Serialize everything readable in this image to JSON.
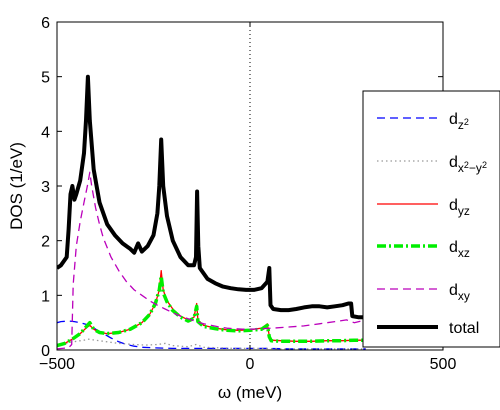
{
  "chart_data": {
    "type": "line",
    "xlabel": "ω (meV)",
    "ylabel": "DOS (1/eV)",
    "xlim": [
      -500,
      500
    ],
    "ylim": [
      0,
      6
    ],
    "x_ticks": [
      "−500",
      "0",
      "500"
    ],
    "y_ticks": [
      "0",
      "1",
      "2",
      "3",
      "4",
      "5",
      "6"
    ],
    "grid": false,
    "legend_position": "right",
    "vertical_reference_lines": [
      0,
      500
    ],
    "series": [
      {
        "name": "dz2",
        "legend_main": "d",
        "legend_sub": "z",
        "legend_sup": "2",
        "color": "#0000ff",
        "dash": "dashed",
        "points": [
          [
            -500,
            0.5
          ],
          [
            -490,
            0.52
          ],
          [
            -470,
            0.53
          ],
          [
            -455,
            0.52
          ],
          [
            -440,
            0.5
          ],
          [
            -430,
            0.48
          ],
          [
            -420,
            0.46
          ],
          [
            -410,
            0.43
          ],
          [
            -400,
            0.38
          ],
          [
            -380,
            0.3
          ],
          [
            -360,
            0.22
          ],
          [
            -340,
            0.15
          ],
          [
            -320,
            0.1
          ],
          [
            -300,
            0.07
          ],
          [
            -280,
            0.05
          ],
          [
            -250,
            0.04
          ],
          [
            -200,
            0.03
          ],
          [
            -150,
            0.03
          ],
          [
            -100,
            0.03
          ],
          [
            -50,
            0.03
          ],
          [
            0,
            0.03
          ],
          [
            50,
            0.03
          ],
          [
            100,
            0.02
          ],
          [
            150,
            0.02
          ],
          [
            200,
            0.02
          ],
          [
            250,
            0.02
          ],
          [
            300,
            0.02
          ]
        ]
      },
      {
        "name": "dx2-y2",
        "legend_main": "d",
        "legend_sub": "x",
        "legend_sup_parts": [
          "2",
          "−y",
          "2"
        ],
        "color": "#999999",
        "dash": "dotted",
        "points": [
          [
            -500,
            0.1
          ],
          [
            -470,
            0.13
          ],
          [
            -450,
            0.16
          ],
          [
            -430,
            0.18
          ],
          [
            -420,
            0.2
          ],
          [
            -400,
            0.18
          ],
          [
            -370,
            0.15
          ],
          [
            -340,
            0.12
          ],
          [
            -300,
            0.1
          ],
          [
            -270,
            0.09
          ],
          [
            -240,
            0.1
          ],
          [
            -220,
            0.12
          ],
          [
            -200,
            0.08
          ],
          [
            -160,
            0.06
          ],
          [
            -140,
            0.1
          ],
          [
            -120,
            0.05
          ],
          [
            -80,
            0.04
          ],
          [
            -40,
            0.03
          ],
          [
            0,
            0.03
          ],
          [
            40,
            0.03
          ],
          [
            80,
            0.02
          ],
          [
            150,
            0.02
          ],
          [
            200,
            0.02
          ],
          [
            250,
            0.02
          ],
          [
            300,
            0.02
          ]
        ]
      },
      {
        "name": "dyz",
        "legend_main": "d",
        "legend_sub": "yz",
        "color": "#ff0000",
        "dash": "solid",
        "points": [
          [
            -500,
            0.08
          ],
          [
            -480,
            0.12
          ],
          [
            -460,
            0.2
          ],
          [
            -440,
            0.3
          ],
          [
            -425,
            0.4
          ],
          [
            -415,
            0.45
          ],
          [
            -405,
            0.38
          ],
          [
            -390,
            0.32
          ],
          [
            -370,
            0.3
          ],
          [
            -340,
            0.32
          ],
          [
            -310,
            0.38
          ],
          [
            -280,
            0.5
          ],
          [
            -260,
            0.65
          ],
          [
            -245,
            0.85
          ],
          [
            -235,
            1.1
          ],
          [
            -230,
            1.45
          ],
          [
            -225,
            1.1
          ],
          [
            -215,
            0.9
          ],
          [
            -200,
            0.75
          ],
          [
            -180,
            0.62
          ],
          [
            -160,
            0.55
          ],
          [
            -145,
            0.6
          ],
          [
            -138,
            0.85
          ],
          [
            -135,
            0.55
          ],
          [
            -120,
            0.45
          ],
          [
            -90,
            0.4
          ],
          [
            -60,
            0.37
          ],
          [
            -30,
            0.36
          ],
          [
            0,
            0.37
          ],
          [
            30,
            0.4
          ],
          [
            45,
            0.48
          ],
          [
            50,
            0.25
          ],
          [
            55,
            0.18
          ],
          [
            80,
            0.17
          ],
          [
            120,
            0.16
          ],
          [
            160,
            0.16
          ],
          [
            200,
            0.17
          ],
          [
            240,
            0.17
          ],
          [
            270,
            0.18
          ],
          [
            300,
            0.18
          ]
        ]
      },
      {
        "name": "dxz",
        "legend_main": "d",
        "legend_sub": "xz",
        "color": "#00ee00",
        "dash": "dashdot",
        "points": [
          [
            -500,
            0.08
          ],
          [
            -480,
            0.12
          ],
          [
            -460,
            0.2
          ],
          [
            -440,
            0.3
          ],
          [
            -425,
            0.42
          ],
          [
            -415,
            0.5
          ],
          [
            -405,
            0.38
          ],
          [
            -390,
            0.32
          ],
          [
            -370,
            0.3
          ],
          [
            -340,
            0.32
          ],
          [
            -310,
            0.38
          ],
          [
            -280,
            0.5
          ],
          [
            -260,
            0.65
          ],
          [
            -245,
            0.85
          ],
          [
            -235,
            1.1
          ],
          [
            -230,
            1.35
          ],
          [
            -225,
            1.05
          ],
          [
            -215,
            0.88
          ],
          [
            -200,
            0.72
          ],
          [
            -180,
            0.6
          ],
          [
            -160,
            0.53
          ],
          [
            -145,
            0.58
          ],
          [
            -138,
            0.8
          ],
          [
            -135,
            0.52
          ],
          [
            -120,
            0.43
          ],
          [
            -90,
            0.39
          ],
          [
            -60,
            0.36
          ],
          [
            -30,
            0.35
          ],
          [
            0,
            0.36
          ],
          [
            30,
            0.38
          ],
          [
            45,
            0.45
          ],
          [
            50,
            0.24
          ],
          [
            55,
            0.17
          ],
          [
            80,
            0.16
          ],
          [
            120,
            0.16
          ],
          [
            160,
            0.16
          ],
          [
            200,
            0.17
          ],
          [
            240,
            0.17
          ],
          [
            270,
            0.18
          ],
          [
            300,
            0.18
          ]
        ]
      },
      {
        "name": "dxy",
        "legend_main": "d",
        "legend_sub": "xy",
        "color": "#bb00bb",
        "dash": "dashed",
        "points": [
          [
            -500,
            0.02
          ],
          [
            -470,
            0.04
          ],
          [
            -462,
            0.1
          ],
          [
            -458,
            1.2
          ],
          [
            -450,
            1.9
          ],
          [
            -440,
            2.35
          ],
          [
            -430,
            2.7
          ],
          [
            -420,
            3.05
          ],
          [
            -415,
            3.25
          ],
          [
            -410,
            3.0
          ],
          [
            -400,
            2.6
          ],
          [
            -390,
            2.3
          ],
          [
            -380,
            2.05
          ],
          [
            -360,
            1.7
          ],
          [
            -340,
            1.45
          ],
          [
            -320,
            1.25
          ],
          [
            -300,
            1.1
          ],
          [
            -280,
            1.0
          ],
          [
            -260,
            0.9
          ],
          [
            -240,
            0.82
          ],
          [
            -220,
            0.75
          ],
          [
            -200,
            0.68
          ],
          [
            -180,
            0.62
          ],
          [
            -160,
            0.57
          ],
          [
            -140,
            0.52
          ],
          [
            -120,
            0.48
          ],
          [
            -100,
            0.45
          ],
          [
            -80,
            0.42
          ],
          [
            -60,
            0.4
          ],
          [
            -40,
            0.39
          ],
          [
            -20,
            0.38
          ],
          [
            0,
            0.38
          ],
          [
            30,
            0.39
          ],
          [
            60,
            0.4
          ],
          [
            100,
            0.42
          ],
          [
            140,
            0.44
          ],
          [
            180,
            0.48
          ],
          [
            220,
            0.52
          ],
          [
            250,
            0.55
          ],
          [
            270,
            0.5
          ],
          [
            300,
            0.55
          ]
        ]
      },
      {
        "name": "total",
        "legend_main": "total",
        "color": "#000000",
        "dash": "solid",
        "points": [
          [
            -500,
            1.5
          ],
          [
            -490,
            1.55
          ],
          [
            -475,
            1.7
          ],
          [
            -470,
            2.2
          ],
          [
            -465,
            2.85
          ],
          [
            -460,
            3.0
          ],
          [
            -455,
            2.75
          ],
          [
            -450,
            2.85
          ],
          [
            -440,
            3.1
          ],
          [
            -430,
            3.6
          ],
          [
            -425,
            4.2
          ],
          [
            -420,
            5.0
          ],
          [
            -415,
            4.2
          ],
          [
            -405,
            3.3
          ],
          [
            -390,
            2.7
          ],
          [
            -370,
            2.3
          ],
          [
            -350,
            2.1
          ],
          [
            -330,
            1.95
          ],
          [
            -310,
            1.85
          ],
          [
            -300,
            1.78
          ],
          [
            -290,
            1.95
          ],
          [
            -280,
            1.8
          ],
          [
            -265,
            1.9
          ],
          [
            -250,
            2.1
          ],
          [
            -240,
            2.5
          ],
          [
            -235,
            3.0
          ],
          [
            -230,
            3.85
          ],
          [
            -225,
            3.0
          ],
          [
            -215,
            2.45
          ],
          [
            -200,
            2.0
          ],
          [
            -180,
            1.7
          ],
          [
            -160,
            1.55
          ],
          [
            -145,
            1.55
          ],
          [
            -140,
            1.7
          ],
          [
            -137,
            2.9
          ],
          [
            -134,
            1.9
          ],
          [
            -130,
            1.5
          ],
          [
            -110,
            1.3
          ],
          [
            -90,
            1.22
          ],
          [
            -70,
            1.16
          ],
          [
            -50,
            1.13
          ],
          [
            -30,
            1.11
          ],
          [
            -10,
            1.1
          ],
          [
            10,
            1.1
          ],
          [
            30,
            1.13
          ],
          [
            45,
            1.25
          ],
          [
            50,
            1.5
          ],
          [
            53,
            0.82
          ],
          [
            60,
            0.75
          ],
          [
            80,
            0.73
          ],
          [
            100,
            0.73
          ],
          [
            120,
            0.75
          ],
          [
            140,
            0.78
          ],
          [
            160,
            0.8
          ],
          [
            180,
            0.8
          ],
          [
            200,
            0.78
          ],
          [
            220,
            0.8
          ],
          [
            240,
            0.82
          ],
          [
            255,
            0.85
          ],
          [
            262,
            0.85
          ],
          [
            265,
            0.62
          ],
          [
            280,
            0.6
          ],
          [
            300,
            0.6
          ]
        ]
      }
    ]
  }
}
